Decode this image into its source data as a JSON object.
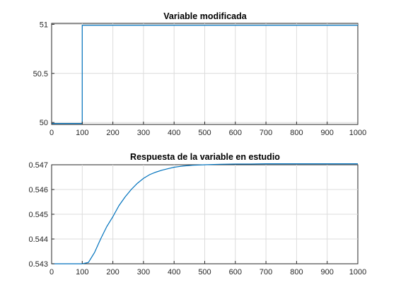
{
  "chart_data": [
    {
      "type": "line",
      "title": "Variable modificada",
      "xlim": [
        0,
        1000
      ],
      "ylim": [
        49.98,
        51.01
      ],
      "xticks": [
        0,
        100,
        200,
        300,
        400,
        500,
        600,
        700,
        800,
        900,
        1000
      ],
      "yticks": [
        50,
        50.5,
        51
      ],
      "ytick_labels": [
        "50",
        "50.5",
        "51"
      ],
      "grid": true,
      "series_color": "#0072bd",
      "x": [
        0,
        100,
        100,
        1000
      ],
      "y": [
        49.99,
        49.99,
        50.99,
        50.99
      ]
    },
    {
      "type": "line",
      "title": "Respuesta de la variable en estudio",
      "xlim": [
        0,
        1000
      ],
      "ylim": [
        0.543,
        0.547
      ],
      "xticks": [
        0,
        100,
        200,
        300,
        400,
        500,
        600,
        700,
        800,
        900,
        1000
      ],
      "yticks": [
        0.543,
        0.544,
        0.545,
        0.546,
        0.547
      ],
      "ytick_labels": [
        "0.543",
        "0.544",
        "0.545",
        "0.546",
        "0.547"
      ],
      "grid": true,
      "series_color": "#0072bd",
      "x": [
        0,
        100,
        120,
        140,
        160,
        180,
        200,
        220,
        240,
        260,
        280,
        300,
        320,
        340,
        360,
        380,
        400,
        430,
        460,
        500,
        550,
        600,
        650,
        700,
        800,
        900,
        1000
      ],
      "y": [
        0.543,
        0.543,
        0.54305,
        0.54345,
        0.544,
        0.5445,
        0.5449,
        0.54535,
        0.5457,
        0.546,
        0.54625,
        0.54645,
        0.5466,
        0.5467,
        0.54678,
        0.54684,
        0.5469,
        0.54695,
        0.54698,
        0.547,
        0.54702,
        0.54703,
        0.54703,
        0.54704,
        0.54704,
        0.54704,
        0.54704
      ]
    }
  ]
}
